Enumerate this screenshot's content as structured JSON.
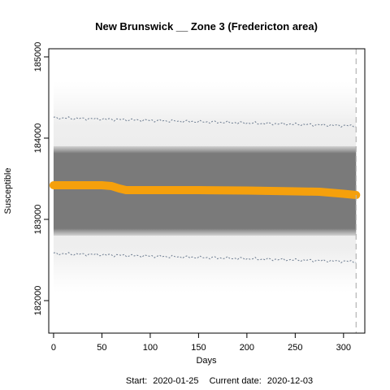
{
  "chart_data": {
    "type": "scatter",
    "title": "New Brunswick __ Zone 3 (Fredericton area)",
    "xlabel": "Days",
    "ylabel": "Susceptible",
    "subtitle_start_label": "Start:",
    "subtitle_start": "2020-01-25",
    "subtitle_current_label": "Current date:",
    "subtitle_current": "2020-12-03",
    "xlim": [
      -5,
      322
    ],
    "ylim": [
      181600,
      185100
    ],
    "xticks": [
      0,
      50,
      100,
      150,
      200,
      250,
      300
    ],
    "yticks": [
      182000,
      183000,
      184000,
      185000
    ],
    "current_day": 313,
    "grid": false,
    "colors": {
      "simulation_cloud": "#808080",
      "median_line": "#f5a00c",
      "bounds": "#6b7b8f",
      "current_day_line": "#b5b5b5"
    },
    "median": {
      "x": [
        0,
        50,
        60,
        68,
        75,
        100,
        150,
        200,
        250,
        275,
        300,
        313
      ],
      "y": [
        183420,
        183420,
        183410,
        183380,
        183360,
        183360,
        183360,
        183355,
        183345,
        183340,
        183315,
        183300
      ]
    },
    "upper_bound": {
      "x": [
        0,
        313
      ],
      "y": [
        184250,
        184150
      ]
    },
    "lower_bound": {
      "x": [
        0,
        313
      ],
      "y": [
        182580,
        182480
      ]
    },
    "core_band": [
      182800,
      183900
    ],
    "outer_band": [
      182100,
      184700
    ]
  }
}
